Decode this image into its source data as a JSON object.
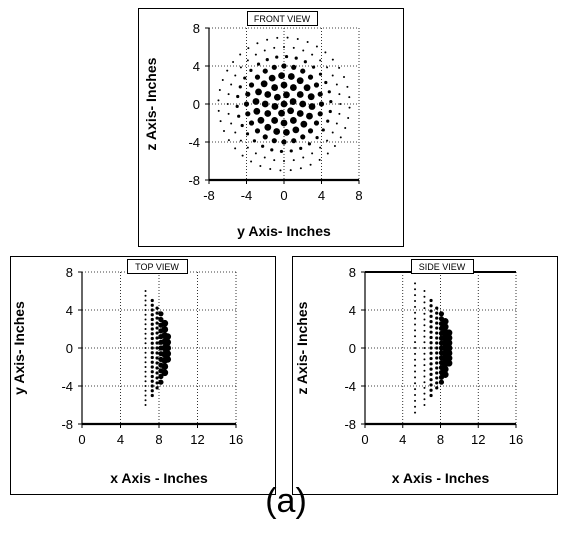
{
  "caption": "(a)",
  "chart_data": [
    {
      "type": "scatter",
      "title": "FRONT VIEW",
      "xlabel": "y Axis- Inches",
      "ylabel": "z Axis- Inches",
      "xlim": [
        -8,
        8
      ],
      "ylim": [
        -8,
        8
      ],
      "xticks": [
        "-8",
        "-4",
        "0",
        "4",
        "8"
      ],
      "yticks": [
        "8",
        "4",
        "0",
        "-4",
        "-8"
      ],
      "xtick_values": [
        -8,
        -4,
        0,
        4,
        8
      ],
      "ytick_values": [
        8,
        4,
        0,
        -4,
        -8
      ],
      "grid": true,
      "description_of_points": "concentric rings of dots centered at (0,0); large dots inside radius ~4, small dots out to radius ~7",
      "rings": [
        {
          "radius": 0,
          "count": 1,
          "size": "large"
        },
        {
          "radius": 1.0,
          "count": 6,
          "size": "large"
        },
        {
          "radius": 2.0,
          "count": 12,
          "size": "large"
        },
        {
          "radius": 3.0,
          "count": 18,
          "size": "large"
        },
        {
          "radius": 4.0,
          "count": 24,
          "size": "medium"
        },
        {
          "radius": 5.0,
          "count": 30,
          "size": "small"
        },
        {
          "radius": 6.0,
          "count": 36,
          "size": "tiny"
        },
        {
          "radius": 7.0,
          "count": 40,
          "size": "tiny"
        }
      ]
    },
    {
      "type": "scatter",
      "title": "TOP VIEW",
      "xlabel": "x Axis - Inches",
      "ylabel": "y Axis- Inches",
      "xlim": [
        0,
        16
      ],
      "ylim": [
        -8,
        8
      ],
      "xticks": [
        "0",
        "4",
        "8",
        "12",
        "16"
      ],
      "yticks": [
        "8",
        "4",
        "0",
        "-4",
        "-8"
      ],
      "xtick_values": [
        0,
        4,
        8,
        12,
        16
      ],
      "ytick_values": [
        8,
        4,
        0,
        -4,
        -8
      ],
      "grid": true,
      "columns": [
        {
          "x": 6.6,
          "y_range": [
            -6,
            6
          ],
          "n": 25,
          "size": "tiny"
        },
        {
          "x": 7.3,
          "y_range": [
            -5,
            5
          ],
          "n": 21,
          "size": "small"
        },
        {
          "x": 7.8,
          "y_range": [
            -4.2,
            4.2
          ],
          "n": 17,
          "size": "small"
        },
        {
          "x": 8.2,
          "y_range": [
            -3.6,
            3.6
          ],
          "n": 13,
          "size": "medium"
        },
        {
          "x": 8.6,
          "y_range": [
            -2.6,
            2.6
          ],
          "n": 9,
          "size": "large"
        },
        {
          "x": 8.9,
          "y_range": [
            -1.2,
            1.2
          ],
          "n": 5,
          "size": "large"
        }
      ]
    },
    {
      "type": "scatter",
      "title": "SIDE VIEW",
      "xlabel": "x Axis - Inches",
      "ylabel": "z Axis- Inches",
      "xlim": [
        0,
        16
      ],
      "ylim": [
        -8,
        8
      ],
      "xticks": [
        "0",
        "4",
        "8",
        "12",
        "16"
      ],
      "yticks": [
        "8",
        "4",
        "0",
        "-4",
        "-8"
      ],
      "xtick_values": [
        0,
        4,
        8,
        12,
        16
      ],
      "ytick_values": [
        8,
        4,
        0,
        -4,
        -8
      ],
      "grid": true,
      "columns": [
        {
          "x": 5.3,
          "y_range": [
            -6.8,
            6.8
          ],
          "n": 23,
          "size": "tiny"
        },
        {
          "x": 6.3,
          "y_range": [
            -6,
            6
          ],
          "n": 21,
          "size": "tiny"
        },
        {
          "x": 7.0,
          "y_range": [
            -5,
            5
          ],
          "n": 19,
          "size": "small"
        },
        {
          "x": 7.6,
          "y_range": [
            -4.2,
            4.2
          ],
          "n": 17,
          "size": "small"
        },
        {
          "x": 8.1,
          "y_range": [
            -3.6,
            3.6
          ],
          "n": 15,
          "size": "medium"
        },
        {
          "x": 8.5,
          "y_range": [
            -2.8,
            2.8
          ],
          "n": 11,
          "size": "large"
        },
        {
          "x": 8.9,
          "y_range": [
            -1.6,
            1.6
          ],
          "n": 7,
          "size": "large"
        }
      ]
    }
  ]
}
